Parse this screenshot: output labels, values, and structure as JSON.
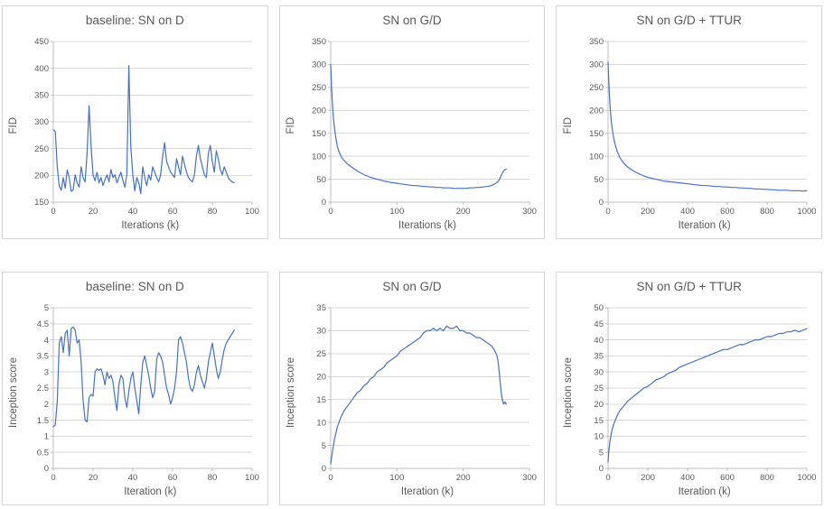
{
  "theme": {
    "line_color": "#4472c4",
    "grid_color": "#d9d9d9",
    "axis_color": "#bfbfbf",
    "text_color": "#595959",
    "panel_border_color": "#d6d6d6"
  },
  "chart_data": [
    {
      "type": "line",
      "title": "baseline: SN on D",
      "xlabel": "Iterations (k)",
      "ylabel": "FID",
      "xlim": [
        0,
        100
      ],
      "ylim": [
        150,
        450
      ],
      "xticks": [
        0,
        20,
        40,
        60,
        80,
        100
      ],
      "yticks": [
        150,
        200,
        250,
        300,
        350,
        400,
        450
      ],
      "x_start": 0,
      "x_step": 1,
      "y": [
        285,
        282,
        215,
        180,
        172,
        196,
        176,
        210,
        196,
        170,
        173,
        201,
        186,
        178,
        216,
        196,
        188,
        242,
        330,
        255,
        201,
        190,
        206,
        186,
        196,
        181,
        192,
        201,
        188,
        211,
        196,
        201,
        186,
        196,
        206,
        191,
        178,
        201,
        405,
        252,
        200,
        171,
        196,
        186,
        166,
        216,
        196,
        181,
        201,
        191,
        216,
        206,
        196,
        188,
        201,
        236,
        261,
        226,
        216,
        206,
        201,
        196,
        231,
        216,
        201,
        236,
        221,
        206,
        196,
        191,
        188,
        201,
        236,
        256,
        231,
        216,
        201,
        196,
        241,
        256,
        226,
        206,
        246,
        231,
        211,
        201,
        216,
        206,
        196,
        191,
        188,
        186
      ]
    },
    {
      "type": "line",
      "title": "SN on G/D",
      "xlabel": "Iterations (k)",
      "ylabel": "FID",
      "xlim": [
        0,
        300
      ],
      "ylim": [
        0,
        350
      ],
      "xticks": [
        0,
        100,
        200,
        300
      ],
      "yticks": [
        0,
        50,
        100,
        150,
        200,
        250,
        300,
        350
      ],
      "x": [
        0,
        2,
        4,
        6,
        8,
        10,
        12,
        14,
        16,
        18,
        20,
        25,
        30,
        35,
        40,
        45,
        50,
        55,
        60,
        65,
        70,
        75,
        80,
        85,
        90,
        95,
        100,
        105,
        110,
        115,
        120,
        125,
        130,
        135,
        140,
        145,
        150,
        155,
        160,
        165,
        170,
        175,
        180,
        185,
        190,
        195,
        200,
        205,
        210,
        215,
        220,
        225,
        230,
        235,
        240,
        244,
        248,
        252,
        255,
        257,
        259,
        261,
        263,
        265
      ],
      "y": [
        300,
        230,
        185,
        158,
        138,
        122,
        112,
        105,
        99,
        95,
        91,
        84,
        78,
        73,
        68,
        64,
        60,
        57,
        54,
        52,
        50,
        48,
        46,
        45,
        43,
        42,
        41,
        40,
        39,
        38,
        37,
        36,
        36,
        35,
        34,
        34,
        33,
        33,
        32,
        32,
        31,
        31,
        31,
        30,
        30,
        30,
        30,
        30,
        31,
        31,
        32,
        32,
        33,
        34,
        35,
        37,
        40,
        44,
        50,
        57,
        63,
        68,
        71,
        72
      ]
    },
    {
      "type": "line",
      "title": "SN on G/D + TTUR",
      "xlabel": "Iteration (k)",
      "ylabel": "FID",
      "xlim": [
        0,
        1000
      ],
      "ylim": [
        0,
        350
      ],
      "xticks": [
        0,
        200,
        400,
        600,
        800,
        1000
      ],
      "yticks": [
        0,
        50,
        100,
        150,
        200,
        250,
        300,
        350
      ],
      "x": [
        0,
        3,
        6,
        10,
        15,
        20,
        25,
        30,
        35,
        40,
        50,
        60,
        70,
        80,
        90,
        100,
        120,
        140,
        160,
        180,
        200,
        220,
        240,
        260,
        280,
        300,
        320,
        340,
        360,
        380,
        400,
        420,
        440,
        460,
        480,
        500,
        520,
        540,
        560,
        580,
        600,
        620,
        640,
        660,
        680,
        700,
        720,
        740,
        760,
        780,
        800,
        820,
        840,
        860,
        880,
        900,
        920,
        940,
        960,
        980,
        1000
      ],
      "y": [
        305,
        270,
        240,
        210,
        182,
        162,
        148,
        136,
        127,
        119,
        106,
        97,
        90,
        85,
        80,
        76,
        70,
        65,
        61,
        57,
        54,
        52,
        50,
        48,
        46,
        45,
        44,
        43,
        42,
        41,
        40,
        39,
        38,
        37,
        36,
        36,
        35,
        34,
        34,
        33,
        33,
        32,
        32,
        31,
        31,
        30,
        30,
        29,
        29,
        28,
        28,
        27,
        27,
        26,
        26,
        26,
        25,
        25,
        25,
        24,
        25
      ]
    },
    {
      "type": "line",
      "title": "baseline: SN on D",
      "xlabel": "Iteration (k)",
      "ylabel": "Inception score",
      "xlim": [
        0,
        100
      ],
      "ylim": [
        0,
        5
      ],
      "xticks": [
        0,
        20,
        40,
        60,
        80,
        100
      ],
      "yticks": [
        0,
        0.5,
        1,
        1.5,
        2,
        2.5,
        3,
        3.5,
        4,
        4.5,
        5
      ],
      "x_start": 0,
      "x_step": 1,
      "y": [
        1.3,
        1.35,
        2.1,
        3.9,
        4.1,
        3.6,
        4.2,
        4.3,
        3.5,
        4.35,
        4.4,
        4.3,
        3.9,
        4.0,
        3.3,
        2.1,
        1.5,
        1.45,
        2.2,
        2.3,
        2.25,
        3.0,
        3.1,
        3.05,
        3.1,
        2.9,
        2.6,
        3.0,
        2.8,
        2.9,
        2.7,
        2.2,
        1.8,
        2.6,
        2.9,
        2.8,
        2.2,
        1.9,
        2.4,
        2.8,
        3.0,
        2.5,
        2.1,
        1.7,
        2.6,
        3.3,
        3.5,
        3.2,
        2.9,
        2.5,
        2.2,
        2.4,
        3.4,
        3.6,
        3.5,
        3.3,
        2.9,
        2.5,
        2.3,
        2.0,
        2.2,
        2.5,
        3.0,
        4.0,
        4.1,
        3.9,
        3.6,
        3.3,
        2.8,
        2.5,
        2.4,
        2.6,
        3.0,
        3.2,
        2.9,
        2.7,
        2.5,
        2.8,
        3.3,
        3.6,
        3.9,
        3.5,
        3.1,
        2.8,
        3.0,
        3.4,
        3.7,
        3.9,
        4.0,
        4.1,
        4.2,
        4.3
      ]
    },
    {
      "type": "line",
      "title": "SN on G/D",
      "xlabel": "Iteration (k)",
      "ylabel": "Inception score",
      "xlim": [
        0,
        300
      ],
      "ylim": [
        0,
        35
      ],
      "xticks": [
        0,
        100,
        200,
        300
      ],
      "yticks": [
        0,
        5,
        10,
        15,
        20,
        25,
        30,
        35
      ],
      "x": [
        0,
        3,
        6,
        10,
        15,
        20,
        25,
        30,
        35,
        40,
        45,
        50,
        55,
        60,
        65,
        70,
        75,
        80,
        85,
        90,
        95,
        100,
        105,
        110,
        115,
        120,
        125,
        130,
        135,
        140,
        145,
        150,
        155,
        160,
        165,
        170,
        175,
        180,
        185,
        190,
        195,
        200,
        205,
        210,
        215,
        220,
        225,
        230,
        235,
        240,
        244,
        248,
        251,
        253,
        255,
        257,
        259,
        261,
        263,
        265
      ],
      "y": [
        1,
        4,
        6.5,
        9,
        11,
        12.5,
        13.5,
        14.5,
        15.5,
        16.5,
        17,
        18,
        18.5,
        19.5,
        20,
        21,
        21.5,
        22,
        23,
        23.5,
        24,
        24.5,
        25.5,
        26,
        26.5,
        27,
        27.5,
        28,
        28.5,
        29.5,
        30,
        30,
        30.5,
        30,
        30.5,
        30,
        31,
        30.5,
        30.5,
        31,
        30,
        30,
        29.5,
        29.5,
        29,
        28.5,
        28.5,
        28,
        27.5,
        27,
        26.5,
        25.5,
        24.5,
        23,
        20,
        17,
        15,
        14,
        14.5,
        14
      ]
    },
    {
      "type": "line",
      "title": "SN on G/D + TTUR",
      "xlabel": "Iteration (k)",
      "ylabel": "Inception score",
      "xlim": [
        0,
        1000
      ],
      "ylim": [
        0,
        50
      ],
      "xticks": [
        0,
        200,
        400,
        600,
        800,
        1000
      ],
      "yticks": [
        0,
        5,
        10,
        15,
        20,
        25,
        30,
        35,
        40,
        45,
        50
      ],
      "x": [
        0,
        5,
        10,
        15,
        20,
        30,
        40,
        50,
        60,
        80,
        100,
        120,
        140,
        160,
        180,
        200,
        220,
        240,
        260,
        280,
        300,
        320,
        340,
        360,
        380,
        400,
        420,
        440,
        460,
        480,
        500,
        520,
        540,
        560,
        580,
        600,
        620,
        640,
        660,
        680,
        700,
        720,
        740,
        760,
        780,
        800,
        820,
        840,
        860,
        880,
        900,
        920,
        940,
        960,
        980,
        1000
      ],
      "y": [
        2,
        6,
        8.5,
        10.5,
        12,
        14,
        15.5,
        17,
        18,
        19.5,
        21,
        22,
        23,
        24,
        25,
        25.5,
        26.5,
        27.5,
        28,
        28.5,
        29.5,
        30,
        30.5,
        31.5,
        32,
        32.5,
        33,
        33.5,
        34,
        34.5,
        35,
        35.5,
        36,
        36.5,
        37,
        37,
        37.5,
        38,
        38.5,
        38.5,
        39,
        39.5,
        40,
        40,
        40.5,
        41,
        41,
        41.5,
        42,
        42,
        42.5,
        42.5,
        43,
        42.5,
        43,
        43.5
      ]
    }
  ]
}
